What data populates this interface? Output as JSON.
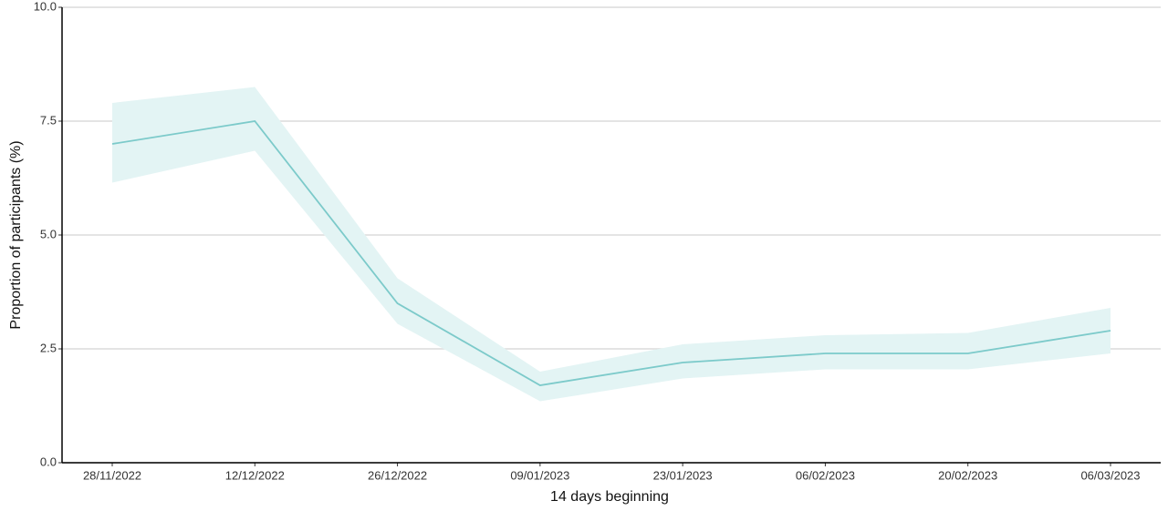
{
  "chart_data": {
    "type": "line",
    "x_label": "14 days beginning",
    "y_label": "Proportion of participants (%)",
    "categories": [
      "28/11/2022",
      "12/12/2022",
      "26/12/2022",
      "09/01/2023",
      "23/01/2023",
      "06/02/2023",
      "20/02/2023",
      "06/03/2023"
    ],
    "values": [
      7.0,
      7.5,
      3.5,
      1.7,
      2.2,
      2.4,
      2.4,
      2.9
    ],
    "lower": [
      6.15,
      6.85,
      3.05,
      1.35,
      1.85,
      2.05,
      2.05,
      2.4
    ],
    "upper": [
      7.9,
      8.25,
      4.05,
      2.0,
      2.6,
      2.8,
      2.85,
      3.4
    ],
    "color": "#7ccaca",
    "band_color": "#e3f4f4",
    "ylim": [
      0,
      10
    ],
    "yticks": [
      {
        "value": 0,
        "label": "0.0"
      },
      2.5,
      {
        "value": 5,
        "label": "5.0"
      },
      7.5,
      {
        "value": 10,
        "label": "10.0"
      }
    ],
    "grid": true
  }
}
